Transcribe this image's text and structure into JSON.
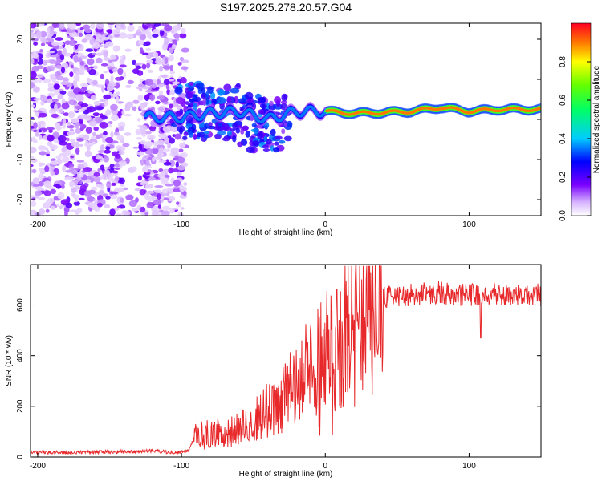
{
  "title": "S197.2025.278.20.57.G04",
  "chart_data": [
    {
      "type": "heatmap",
      "xlabel": "Height of straight line (km)",
      "ylabel": "Frequency (Hz)",
      "xlim": [
        -205,
        150
      ],
      "ylim": [
        -24,
        24
      ],
      "xticks": [
        -200,
        -100,
        0,
        100
      ],
      "yticks": [
        -20,
        -10,
        0,
        10,
        20
      ],
      "colorbar": {
        "label": "Normalized spectral amplitude",
        "range": [
          0,
          1
        ],
        "ticks": [
          "0.0",
          "0.2",
          "0.4",
          "0.6",
          "0.8"
        ]
      },
      "ridge": [
        {
          "x": -120,
          "f": 0.5,
          "a": 0.35
        },
        {
          "x": -100,
          "f": 0.5,
          "a": 0.35
        },
        {
          "x": -80,
          "f": 1.5,
          "a": 0.4
        },
        {
          "x": -60,
          "f": 2,
          "a": 0.35
        },
        {
          "x": -40,
          "f": 0,
          "a": 0.35
        },
        {
          "x": -20,
          "f": 2,
          "a": 0.5
        },
        {
          "x": 0,
          "f": 2,
          "a": 0.6
        },
        {
          "x": 20,
          "f": 1.5,
          "a": 0.85
        },
        {
          "x": 40,
          "f": 1.7,
          "a": 0.9
        },
        {
          "x": 60,
          "f": 2,
          "a": 0.85
        },
        {
          "x": 80,
          "f": 3,
          "a": 0.95
        },
        {
          "x": 100,
          "f": 2,
          "a": 0.85
        },
        {
          "x": 120,
          "f": 2.5,
          "a": 0.9
        },
        {
          "x": 150,
          "f": 2.5,
          "a": 0.9
        }
      ]
    },
    {
      "type": "line",
      "xlabel": "Height of straight line (km)",
      "ylabel": "SNR (10 * v/v)",
      "xlim": [
        -205,
        150
      ],
      "ylim": [
        0,
        760
      ],
      "xticks": [
        -200,
        -100,
        0,
        100
      ],
      "yticks": [
        0,
        200,
        400,
        600
      ],
      "color": "#e8292b",
      "series": [
        {
          "name": "SNR",
          "x": [
            -205,
            -190,
            -170,
            -150,
            -130,
            -120,
            -110,
            -100,
            -95,
            -90,
            -80,
            -70,
            -60,
            -50,
            -40,
            -35,
            -30,
            -25,
            -20,
            -15,
            -10,
            -5,
            0,
            5,
            10,
            15,
            20,
            25,
            30,
            40,
            50,
            60,
            70,
            80,
            90,
            100,
            110,
            120,
            130,
            140,
            150
          ],
          "values": [
            20,
            18,
            20,
            20,
            22,
            25,
            20,
            18,
            25,
            90,
            95,
            95,
            110,
            150,
            190,
            180,
            220,
            260,
            300,
            320,
            350,
            380,
            420,
            430,
            460,
            520,
            580,
            600,
            620,
            630,
            640,
            640,
            645,
            650,
            640,
            640,
            645,
            640,
            640,
            640,
            640
          ]
        }
      ]
    }
  ]
}
